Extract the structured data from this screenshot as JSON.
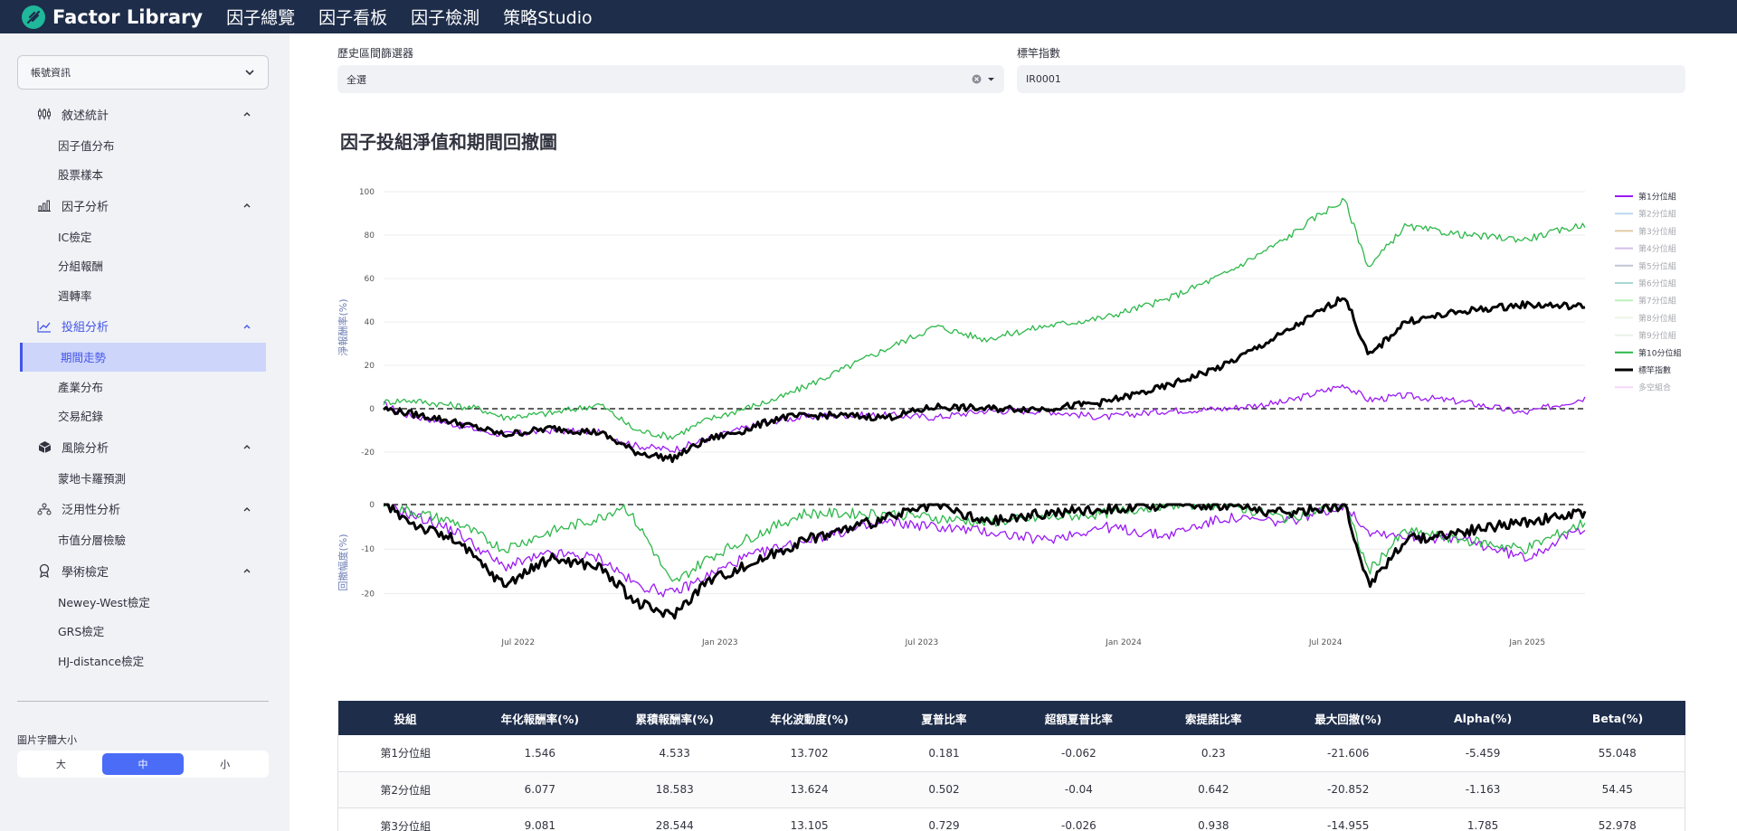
{
  "app": {
    "title": "Factor Library",
    "nav": [
      "因子總覽",
      "因子看板",
      "因子檢測",
      "策略Studio"
    ]
  },
  "sidebar": {
    "account_label": "帳號資訊",
    "sections": [
      {
        "label": "敘述統計",
        "icon": "candlestick-icon",
        "items": [
          "因子值分布",
          "股票樣本"
        ]
      },
      {
        "label": "因子分析",
        "icon": "bar-chart-icon",
        "items": [
          "IC檢定",
          "分組報酬",
          "週轉率"
        ]
      },
      {
        "label": "投組分析",
        "icon": "line-chart-icon",
        "active": true,
        "items": [
          "期間走勢",
          "產業分布",
          "交易紀錄"
        ],
        "active_item": "期間走勢"
      },
      {
        "label": "風險分析",
        "icon": "cube-icon",
        "items": [
          "蒙地卡羅預測"
        ]
      },
      {
        "label": "泛用性分析",
        "icon": "hierarchy-icon",
        "items": [
          "市值分層檢驗"
        ]
      },
      {
        "label": "學術檢定",
        "icon": "award-icon",
        "items": [
          "Newey-West檢定",
          "GRS檢定",
          "HJ-distance檢定"
        ]
      }
    ],
    "font_size_label": "圖片字體大小",
    "font_size_options": [
      "大",
      "中",
      "小"
    ],
    "font_size_selected": "中"
  },
  "filters": {
    "period_label": "歷史區間篩選器",
    "period_value": "全選",
    "benchmark_label": "標竿指數",
    "benchmark_value": "IR0001"
  },
  "chart_title": "因子投組淨值和期間回撤圖",
  "chart_data": {
    "type": "line",
    "x_ticks": [
      "Jul 2022",
      "Jan 2023",
      "Jul 2023",
      "Jan 2024",
      "Jul 2024",
      "Jan 2025"
    ],
    "x_range": [
      "2022-01",
      "2025-05"
    ],
    "top_panel": {
      "ylabel": "淨報酬率(%)",
      "y_ticks": [
        100,
        80,
        60,
        40,
        20,
        0,
        -20
      ],
      "ylim": [
        -25,
        100
      ]
    },
    "bottom_panel": {
      "ylabel": "回撤幅度(%)",
      "y_ticks": [
        0,
        -10,
        -20
      ],
      "ylim": [
        -26,
        0
      ]
    },
    "legend": [
      {
        "name": "第1分位組",
        "color": "#9b19f5",
        "active": true
      },
      {
        "name": "第2分位組",
        "color": "#6fa8dc",
        "active": false
      },
      {
        "name": "第3分位組",
        "color": "#c08c3c",
        "active": false
      },
      {
        "name": "第4分位組",
        "color": "#a070d0",
        "active": false
      },
      {
        "name": "第5分位組",
        "color": "#7c7ca8",
        "active": false
      },
      {
        "name": "第6分位組",
        "color": "#3fa89a",
        "active": false
      },
      {
        "name": "第7分位組",
        "color": "#70e070",
        "active": false
      },
      {
        "name": "第8分位組",
        "color": "#d8e8c8",
        "active": false
      },
      {
        "name": "第9分位組",
        "color": "#d0e4d0",
        "active": false
      },
      {
        "name": "第10分位組",
        "color": "#2db84a",
        "active": true
      },
      {
        "name": "標竿指數",
        "color": "#000000",
        "active": true
      },
      {
        "name": "多空組合",
        "color": "#e8a8f0",
        "active": false
      }
    ],
    "series": [
      {
        "name": "第1分位組",
        "color": "#9b19f5",
        "t": [
          0,
          0.02,
          0.05,
          0.08,
          0.1,
          0.14,
          0.18,
          0.21,
          0.24,
          0.27,
          0.3,
          0.33,
          0.37,
          0.42,
          0.46,
          0.5,
          0.55,
          0.6,
          0.65,
          0.7,
          0.75,
          0.8,
          0.82,
          0.85,
          0.9,
          0.95,
          1
        ],
        "y": [
          2,
          -3,
          -6,
          -10,
          -12,
          -10,
          -11,
          -17,
          -19,
          -14,
          -9,
          -5,
          -3,
          -3,
          -4,
          -1,
          -1,
          -4,
          -1,
          0,
          3,
          11,
          4,
          6,
          3,
          -2,
          5
        ]
      },
      {
        "name": "第10分位組",
        "color": "#2db84a",
        "t": [
          0,
          0.02,
          0.05,
          0.08,
          0.1,
          0.14,
          0.18,
          0.21,
          0.24,
          0.27,
          0.3,
          0.33,
          0.37,
          0.42,
          0.46,
          0.5,
          0.55,
          0.6,
          0.65,
          0.7,
          0.75,
          0.78,
          0.8,
          0.82,
          0.85,
          0.9,
          0.95,
          1
        ],
        "y": [
          3,
          4,
          2,
          0,
          -4,
          -2,
          2,
          -10,
          -13,
          -5,
          0,
          5,
          15,
          28,
          38,
          32,
          38,
          42,
          50,
          62,
          78,
          90,
          96,
          65,
          84,
          80,
          78,
          85
        ]
      },
      {
        "name": "標竿指數",
        "color": "#000000",
        "t": [
          0,
          0.02,
          0.05,
          0.08,
          0.1,
          0.14,
          0.18,
          0.21,
          0.24,
          0.27,
          0.3,
          0.33,
          0.37,
          0.42,
          0.46,
          0.5,
          0.55,
          0.6,
          0.65,
          0.7,
          0.75,
          0.78,
          0.8,
          0.82,
          0.85,
          0.9,
          0.95,
          1
        ],
        "y": [
          0,
          -2,
          -5,
          -9,
          -12,
          -9,
          -11,
          -20,
          -23,
          -14,
          -10,
          -4,
          -3,
          -4,
          1,
          0,
          0,
          3,
          10,
          20,
          35,
          45,
          52,
          24,
          40,
          45,
          48,
          47
        ]
      }
    ],
    "drawdown": [
      {
        "name": "第1分位組",
        "color": "#9b19f5",
        "t": [
          0,
          0.03,
          0.06,
          0.1,
          0.14,
          0.18,
          0.21,
          0.24,
          0.27,
          0.3,
          0.35,
          0.42,
          0.5,
          0.55,
          0.6,
          0.65,
          0.7,
          0.75,
          0.8,
          0.82,
          0.85,
          0.9,
          0.95,
          1
        ],
        "y": [
          0,
          -3,
          -6,
          -14,
          -11,
          -12,
          -18,
          -20,
          -16,
          -12,
          -8,
          -4,
          -6,
          -8,
          -5,
          -7,
          -3,
          -4,
          0,
          -6,
          -7,
          -8,
          -12,
          -5
        ]
      },
      {
        "name": "第10分位組",
        "color": "#2db84a",
        "t": [
          0,
          0.03,
          0.06,
          0.1,
          0.14,
          0.18,
          0.2,
          0.22,
          0.24,
          0.27,
          0.3,
          0.35,
          0.42,
          0.5,
          0.55,
          0.6,
          0.65,
          0.7,
          0.75,
          0.8,
          0.82,
          0.85,
          0.9,
          0.95,
          1
        ],
        "y": [
          0,
          -2,
          -4,
          -10,
          -6,
          -3,
          0,
          -8,
          -18,
          -12,
          -8,
          -2,
          -2,
          -4,
          -3,
          -2,
          0,
          0,
          -3,
          0,
          -15,
          -6,
          -8,
          -10,
          -4
        ]
      },
      {
        "name": "標竿指數",
        "color": "#000000",
        "t": [
          0,
          0.03,
          0.06,
          0.1,
          0.14,
          0.18,
          0.21,
          0.24,
          0.27,
          0.3,
          0.35,
          0.42,
          0.46,
          0.5,
          0.55,
          0.6,
          0.65,
          0.7,
          0.75,
          0.8,
          0.82,
          0.85,
          0.9,
          0.95,
          1
        ],
        "y": [
          0,
          -5,
          -8,
          -18,
          -12,
          -14,
          -22,
          -25,
          -17,
          -14,
          -8,
          -3,
          0,
          -4,
          -2,
          -1,
          0,
          0,
          -2,
          0,
          -18,
          -8,
          -6,
          -4,
          -2
        ]
      }
    ]
  },
  "table": {
    "headers": [
      "投組",
      "年化報酬率(%)",
      "累積報酬率(%)",
      "年化波動度(%)",
      "夏普比率",
      "超額夏普比率",
      "索提諾比率",
      "最大回撤(%)",
      "Alpha(%)",
      "Beta(%)"
    ],
    "rows": [
      [
        "第1分位組",
        "1.546",
        "4.533",
        "13.702",
        "0.181",
        "-0.062",
        "0.23",
        "-21.606",
        "-5.459",
        "55.048"
      ],
      [
        "第2分位組",
        "6.077",
        "18.583",
        "13.624",
        "0.502",
        "-0.04",
        "0.642",
        "-20.852",
        "-1.163",
        "54.45"
      ],
      [
        "第3分位組",
        "9.081",
        "28.544",
        "13.105",
        "0.729",
        "-0.026",
        "0.938",
        "-14.955",
        "1.785",
        "52.978"
      ]
    ]
  }
}
